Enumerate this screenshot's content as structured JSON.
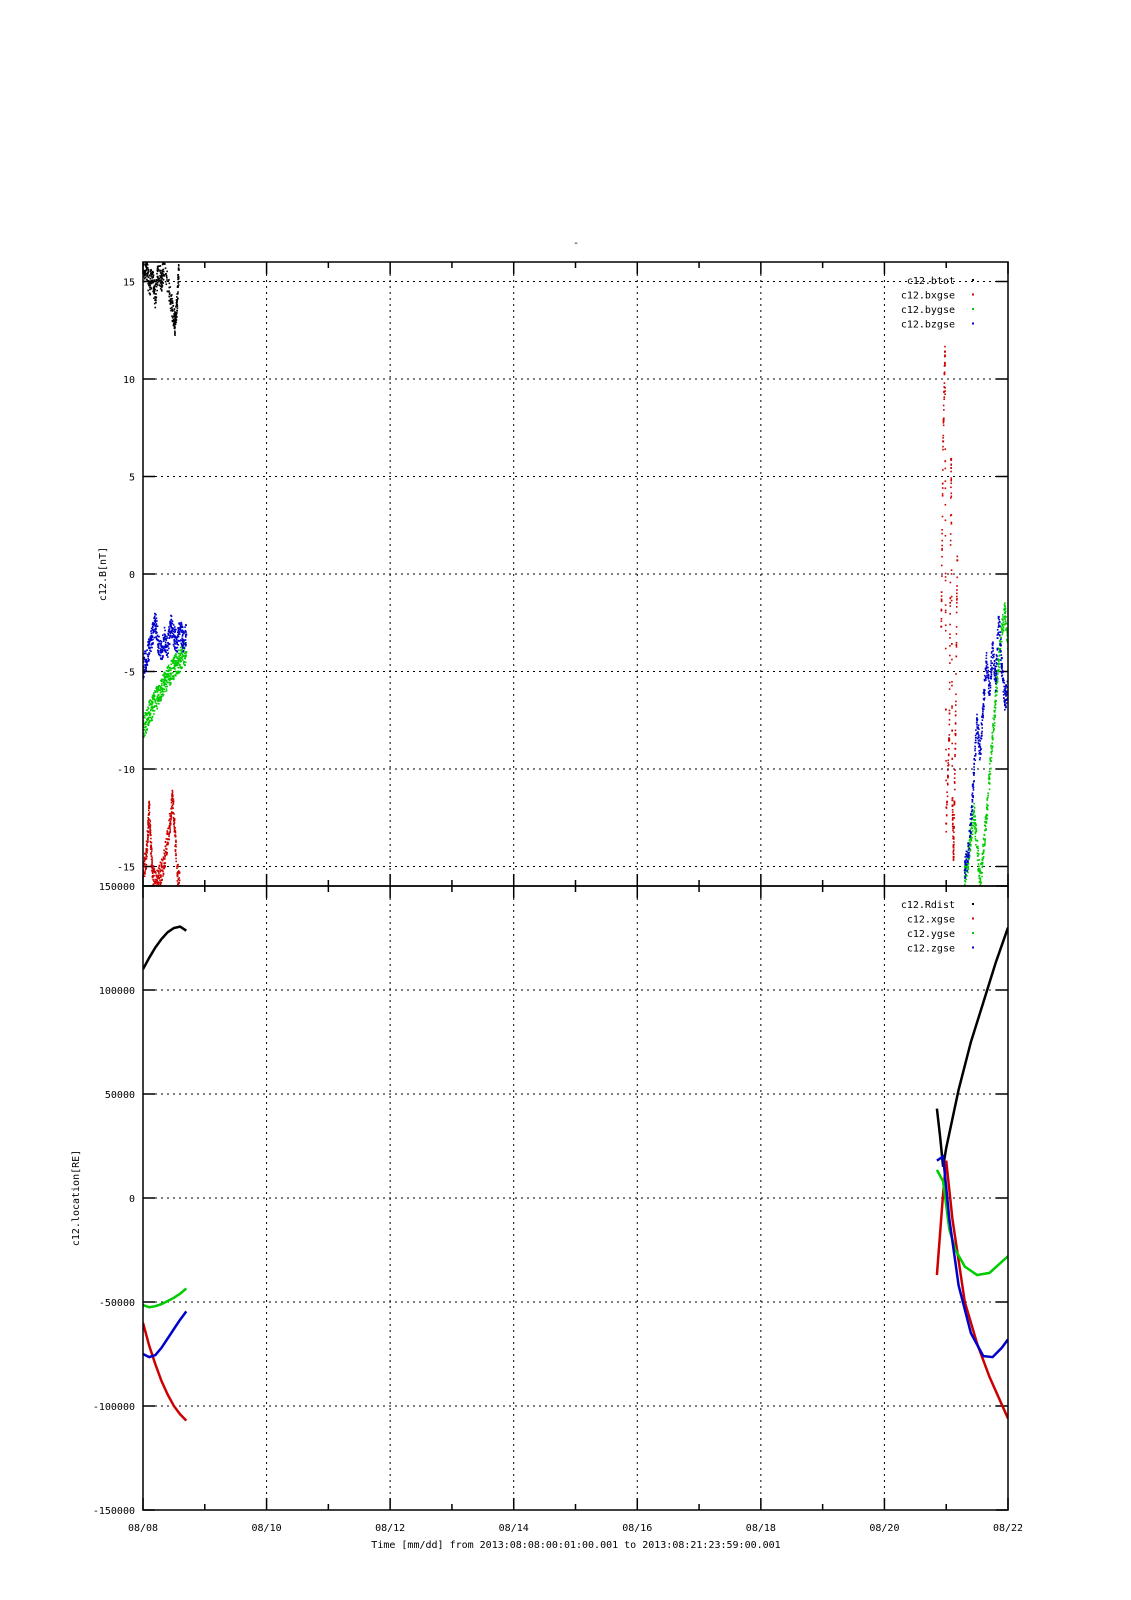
{
  "figure": {
    "title": "-",
    "time_axis": {
      "label": "Time [mm/dd]  from 2013:08:08:00:01:00.001  to  2013:08:21:23:59:00.001",
      "range_days": [
        0,
        14
      ],
      "tick_labels": [
        "08/08",
        "08/10",
        "08/12",
        "08/14",
        "08/16",
        "08/18",
        "08/20",
        "08/22"
      ],
      "grid": true
    }
  },
  "chart_data": [
    {
      "type": "scatter",
      "ylabel": "c12.B[nT]",
      "ylim": [
        -16,
        16
      ],
      "yticks": [
        15,
        10,
        5,
        0,
        -5,
        -10,
        -15
      ],
      "grid": true,
      "legend_position": "top-right",
      "x_unit": "days since 2013-08-08 00:00",
      "series": [
        {
          "name": "c12.btot",
          "color": "#000000",
          "points": [
            [
              0.0,
              15.4
            ],
            [
              0.05,
              15.8
            ],
            [
              0.1,
              14.8
            ],
            [
              0.15,
              15.2
            ],
            [
              0.2,
              14.2
            ],
            [
              0.25,
              15.6
            ],
            [
              0.3,
              15.0
            ],
            [
              0.35,
              15.9
            ],
            [
              0.45,
              14.0
            ],
            [
              0.5,
              13.2
            ],
            [
              0.52,
              12.8
            ],
            [
              0.55,
              13.8
            ],
            [
              0.58,
              15.6
            ]
          ]
        },
        {
          "name": "c12.bxgse",
          "color": "#cc0000",
          "points": [
            [
              0.0,
              -15.3
            ],
            [
              0.05,
              -14.6
            ],
            [
              0.08,
              -13.2
            ],
            [
              0.1,
              -12.0
            ],
            [
              0.13,
              -14.0
            ],
            [
              0.16,
              -15.5
            ],
            [
              0.2,
              -15.8
            ],
            [
              0.25,
              -15.6
            ],
            [
              0.3,
              -15.2
            ],
            [
              0.35,
              -14.6
            ],
            [
              0.4,
              -13.6
            ],
            [
              0.45,
              -12.4
            ],
            [
              0.48,
              -11.4
            ],
            [
              0.52,
              -13.4
            ],
            [
              0.56,
              -15.4
            ],
            [
              0.6,
              -16.0
            ],
            [
              12.92,
              -2.7
            ],
            [
              12.95,
              6.8
            ],
            [
              12.98,
              11.4
            ],
            [
              13.0,
              -12.8
            ],
            [
              13.05,
              -8.5
            ],
            [
              13.08,
              5.9
            ],
            [
              13.1,
              -11.6
            ],
            [
              13.12,
              -14.5
            ],
            [
              13.15,
              -8.2
            ],
            [
              13.18,
              0.7
            ]
          ]
        },
        {
          "name": "c12.bygse",
          "color": "#00cc00",
          "points": [
            [
              0.0,
              -8.0
            ],
            [
              0.05,
              -7.6
            ],
            [
              0.1,
              -7.1
            ],
            [
              0.15,
              -6.9
            ],
            [
              0.2,
              -6.5
            ],
            [
              0.25,
              -6.2
            ],
            [
              0.3,
              -5.9
            ],
            [
              0.35,
              -5.6
            ],
            [
              0.4,
              -5.3
            ],
            [
              0.45,
              -5.1
            ],
            [
              0.5,
              -4.8
            ],
            [
              0.55,
              -4.6
            ],
            [
              0.6,
              -4.4
            ],
            [
              0.65,
              -4.2
            ],
            [
              0.7,
              -4.0
            ],
            [
              13.3,
              -15.5
            ],
            [
              13.35,
              -14.8
            ],
            [
              13.4,
              -13.5
            ],
            [
              13.45,
              -12.2
            ],
            [
              13.5,
              -14.0
            ],
            [
              13.55,
              -15.8
            ],
            [
              13.6,
              -14.3
            ],
            [
              13.65,
              -12.5
            ],
            [
              13.7,
              -10.5
            ],
            [
              13.75,
              -8.4
            ],
            [
              13.8,
              -6.5
            ],
            [
              13.85,
              -4.6
            ],
            [
              13.9,
              -2.8
            ],
            [
              13.95,
              -2.0
            ],
            [
              14.0,
              -3.5
            ]
          ]
        },
        {
          "name": "c12.bzgse",
          "color": "#0000cc",
          "points": [
            [
              0.0,
              -4.8
            ],
            [
              0.05,
              -4.4
            ],
            [
              0.1,
              -3.8
            ],
            [
              0.15,
              -3.2
            ],
            [
              0.2,
              -2.4
            ],
            [
              0.25,
              -3.6
            ],
            [
              0.3,
              -4.0
            ],
            [
              0.35,
              -3.3
            ],
            [
              0.4,
              -3.7
            ],
            [
              0.45,
              -2.6
            ],
            [
              0.5,
              -3.2
            ],
            [
              0.55,
              -3.5
            ],
            [
              0.6,
              -2.8
            ],
            [
              0.65,
              -3.4
            ],
            [
              0.7,
              -3.1
            ],
            [
              13.3,
              -15.2
            ],
            [
              13.35,
              -14.5
            ],
            [
              13.4,
              -12.8
            ],
            [
              13.45,
              -10.2
            ],
            [
              13.5,
              -7.5
            ],
            [
              13.55,
              -9.2
            ],
            [
              13.6,
              -6.8
            ],
            [
              13.65,
              -4.5
            ],
            [
              13.7,
              -6.2
            ],
            [
              13.75,
              -3.8
            ],
            [
              13.8,
              -5.5
            ],
            [
              13.85,
              -2.2
            ],
            [
              13.9,
              -4.7
            ],
            [
              13.95,
              -6.5
            ],
            [
              14.0,
              -5.8
            ]
          ]
        }
      ]
    },
    {
      "type": "line",
      "ylabel": "c12.location[RE]",
      "ylim": [
        -150000,
        150000
      ],
      "yticks": [
        150000,
        100000,
        50000,
        0,
        -50000,
        -100000,
        -150000
      ],
      "grid": true,
      "legend_position": "top-right",
      "x_unit": "days since 2013-08-08 00:00",
      "series": [
        {
          "name": "c12.Rdist",
          "color": "#000000",
          "segments": [
            [
              [
                0.0,
                110000
              ],
              [
                0.1,
                115500
              ],
              [
                0.2,
                120500
              ],
              [
                0.3,
                124500
              ],
              [
                0.4,
                127800
              ],
              [
                0.5,
                129800
              ],
              [
                0.6,
                130500
              ],
              [
                0.7,
                128500
              ]
            ],
            [
              [
                12.85,
                43000
              ],
              [
                12.9,
                30000
              ],
              [
                12.95,
                15000
              ],
              [
                13.0,
                24000
              ],
              [
                13.2,
                52000
              ],
              [
                13.4,
                75000
              ],
              [
                13.6,
                94000
              ],
              [
                13.8,
                113000
              ],
              [
                14.0,
                130000
              ]
            ]
          ]
        },
        {
          "name": "c12.xgse",
          "color": "#cc0000",
          "segments": [
            [
              [
                0.0,
                -60000
              ],
              [
                0.1,
                -71000
              ],
              [
                0.2,
                -80000
              ],
              [
                0.3,
                -88000
              ],
              [
                0.4,
                -94500
              ],
              [
                0.5,
                -100000
              ],
              [
                0.6,
                -104000
              ],
              [
                0.7,
                -107000
              ]
            ],
            [
              [
                12.85,
                -37000
              ],
              [
                12.95,
                2000
              ],
              [
                13.0,
                18000
              ],
              [
                13.1,
                -10000
              ],
              [
                13.3,
                -50000
              ],
              [
                13.5,
                -70000
              ],
              [
                13.7,
                -86000
              ],
              [
                14.0,
                -106000
              ]
            ]
          ]
        },
        {
          "name": "c12.ygse",
          "color": "#00cc00",
          "segments": [
            [
              [
                0.0,
                -51500
              ],
              [
                0.1,
                -52500
              ],
              [
                0.2,
                -52000
              ],
              [
                0.3,
                -51000
              ],
              [
                0.4,
                -49500
              ],
              [
                0.5,
                -48000
              ],
              [
                0.6,
                -46000
              ],
              [
                0.7,
                -43500
              ]
            ],
            [
              [
                12.85,
                13500
              ],
              [
                12.95,
                8000
              ],
              [
                13.05,
                -15000
              ],
              [
                13.15,
                -25000
              ],
              [
                13.3,
                -33000
              ],
              [
                13.5,
                -37000
              ],
              [
                13.7,
                -36000
              ],
              [
                13.85,
                -32000
              ],
              [
                14.0,
                -28000
              ]
            ]
          ]
        },
        {
          "name": "c12.zgse",
          "color": "#0000cc",
          "segments": [
            [
              [
                0.0,
                -75000
              ],
              [
                0.1,
                -76500
              ],
              [
                0.2,
                -75500
              ],
              [
                0.3,
                -72000
              ],
              [
                0.4,
                -67500
              ],
              [
                0.5,
                -63000
              ],
              [
                0.6,
                -58500
              ],
              [
                0.7,
                -54500
              ]
            ],
            [
              [
                12.85,
                18000
              ],
              [
                12.95,
                20000
              ],
              [
                13.05,
                -10000
              ],
              [
                13.2,
                -42000
              ],
              [
                13.4,
                -65000
              ],
              [
                13.6,
                -76000
              ],
              [
                13.75,
                -76500
              ],
              [
                13.9,
                -72000
              ],
              [
                14.0,
                -68000
              ]
            ]
          ]
        }
      ]
    }
  ]
}
